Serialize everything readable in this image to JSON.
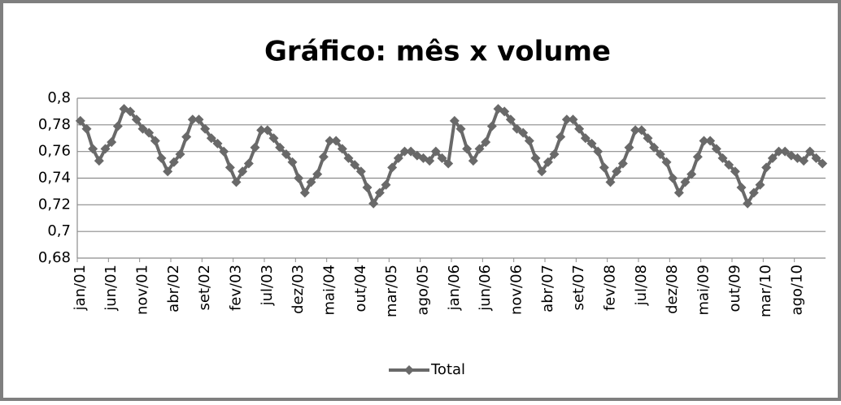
{
  "chart_data": {
    "type": "line",
    "title": "Gráfico: mês x volume",
    "categories": [
      "jan/01",
      null,
      null,
      null,
      null,
      "jun/01",
      null,
      null,
      null,
      null,
      "nov/01",
      null,
      null,
      null,
      null,
      "abr/02",
      null,
      null,
      null,
      null,
      "set/02",
      null,
      null,
      null,
      null,
      "fev/03",
      null,
      null,
      null,
      null,
      "jul/03",
      null,
      null,
      null,
      null,
      "dez/03",
      null,
      null,
      null,
      null,
      "mai/04",
      null,
      null,
      null,
      null,
      "out/04",
      null,
      null,
      null,
      null,
      "mar/05",
      null,
      null,
      null,
      null,
      "ago/05",
      null,
      null,
      null,
      null,
      "jan/06",
      null,
      null,
      null,
      null,
      "jun/06",
      null,
      null,
      null,
      null,
      "nov/06",
      null,
      null,
      null,
      null,
      "abr/07",
      null,
      null,
      null,
      null,
      "set/07",
      null,
      null,
      null,
      null,
      "fev/08",
      null,
      null,
      null,
      null,
      "jul/08",
      null,
      null,
      null,
      null,
      "dez/08",
      null,
      null,
      null,
      null,
      "mai/09",
      null,
      null,
      null,
      null,
      "out/09",
      null,
      null,
      null,
      null,
      "mar/10",
      null,
      null,
      null,
      null,
      "ago/10",
      null,
      null,
      null,
      null
    ],
    "series": [
      {
        "name": "Total",
        "color": "#696969",
        "values": [
          0.783,
          0.777,
          0.762,
          0.753,
          0.762,
          0.767,
          0.779,
          0.792,
          0.79,
          0.784,
          0.777,
          0.774,
          0.768,
          0.755,
          0.745,
          0.752,
          0.758,
          0.771,
          0.784,
          0.784,
          0.777,
          0.77,
          0.766,
          0.76,
          0.748,
          0.737,
          0.745,
          0.751,
          0.763,
          0.776,
          0.776,
          0.77,
          0.763,
          0.758,
          0.752,
          0.74,
          0.729,
          0.737,
          0.743,
          0.756,
          0.768,
          0.768,
          0.762,
          0.755,
          0.75,
          0.745,
          0.733,
          0.721,
          0.729,
          0.735,
          0.748,
          0.755,
          0.76,
          0.76,
          0.757,
          0.755,
          0.753,
          0.76,
          0.755,
          0.751,
          0.783,
          0.777,
          0.762,
          0.753,
          0.762,
          0.767,
          0.779,
          0.792,
          0.79,
          0.784,
          0.777,
          0.774,
          0.768,
          0.755,
          0.745,
          0.752,
          0.758,
          0.771,
          0.784,
          0.784,
          0.777,
          0.77,
          0.766,
          0.76,
          0.748,
          0.737,
          0.745,
          0.751,
          0.763,
          0.776,
          0.776,
          0.77,
          0.763,
          0.758,
          0.752,
          0.74,
          0.729,
          0.737,
          0.743,
          0.756,
          0.768,
          0.768,
          0.762,
          0.755,
          0.75,
          0.745,
          0.733,
          0.721,
          0.729,
          0.735,
          0.748,
          0.755,
          0.76,
          0.76,
          0.757,
          0.755,
          0.753,
          0.76,
          0.755,
          0.751
        ]
      }
    ],
    "ylim": [
      0.68,
      0.8
    ],
    "yticks": [
      {
        "value": 0.68,
        "label": "0,68"
      },
      {
        "value": 0.7,
        "label": "0,7"
      },
      {
        "value": 0.72,
        "label": "0,72"
      },
      {
        "value": 0.74,
        "label": "0,74"
      },
      {
        "value": 0.76,
        "label": "0,76"
      },
      {
        "value": 0.78,
        "label": "0,78"
      },
      {
        "value": 0.8,
        "label": "0,8"
      }
    ],
    "grid": true,
    "legend": "bottom"
  }
}
